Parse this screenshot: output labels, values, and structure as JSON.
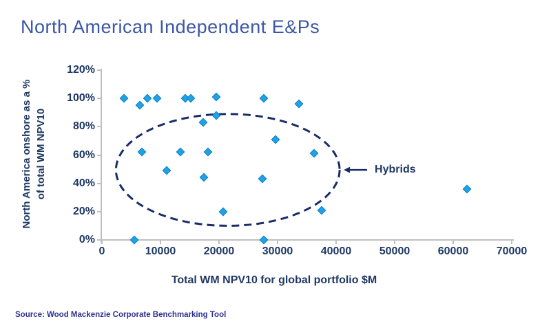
{
  "title": "North American Independent E&Ps",
  "source": "Source: Wood Mackenzie Corporate Benchmarking Tool",
  "colors": {
    "title_blue": "#3B57A6",
    "navy": "#1F3864",
    "point_fill": "#1FA3E6",
    "point_border": "#0D7EC4",
    "axis_gray": "#BFBFBF",
    "annotation_navy": "#182C66",
    "source_blue": "#2E3192"
  },
  "chart_data": {
    "type": "scatter",
    "title": "North American Independent E&Ps",
    "xlabel": "Total WM NPV10 for global portfolio $M",
    "ylabel_line1": "North America onshore as a %",
    "ylabel_line2": "of total WM NPV10",
    "xlim": [
      0,
      70000
    ],
    "ylim": [
      0,
      120
    ],
    "grid": false,
    "legend": "none",
    "x_ticks": [
      "0",
      "10000",
      "20000",
      "30000",
      "40000",
      "50000",
      "60000",
      "70000"
    ],
    "y_ticks": [
      "0%",
      "20%",
      "40%",
      "60%",
      "80%",
      "100%",
      "120%"
    ],
    "points": [
      {
        "x": 3800,
        "y": 100
      },
      {
        "x": 6500,
        "y": 95
      },
      {
        "x": 7800,
        "y": 100
      },
      {
        "x": 9400,
        "y": 100
      },
      {
        "x": 14200,
        "y": 100
      },
      {
        "x": 15200,
        "y": 100
      },
      {
        "x": 19500,
        "y": 101
      },
      {
        "x": 27700,
        "y": 100
      },
      {
        "x": 33600,
        "y": 96
      },
      {
        "x": 19500,
        "y": 88
      },
      {
        "x": 17300,
        "y": 83
      },
      {
        "x": 29600,
        "y": 71
      },
      {
        "x": 6800,
        "y": 62
      },
      {
        "x": 13400,
        "y": 62
      },
      {
        "x": 18100,
        "y": 62
      },
      {
        "x": 36200,
        "y": 61
      },
      {
        "x": 11100,
        "y": 49
      },
      {
        "x": 17400,
        "y": 44
      },
      {
        "x": 27400,
        "y": 43
      },
      {
        "x": 20700,
        "y": 20
      },
      {
        "x": 37500,
        "y": 21
      },
      {
        "x": 5500,
        "y": 0
      },
      {
        "x": 27700,
        "y": 0
      },
      {
        "x": 62400,
        "y": 36
      }
    ],
    "annotation": {
      "label": "Hybrids",
      "ellipse": {
        "cx": 21500,
        "cy": 49.5,
        "rx": 19100,
        "ry": 39.5
      },
      "arrow": {
        "tail_x": 45300,
        "tip_x": 41300,
        "y": 49.5
      }
    }
  }
}
